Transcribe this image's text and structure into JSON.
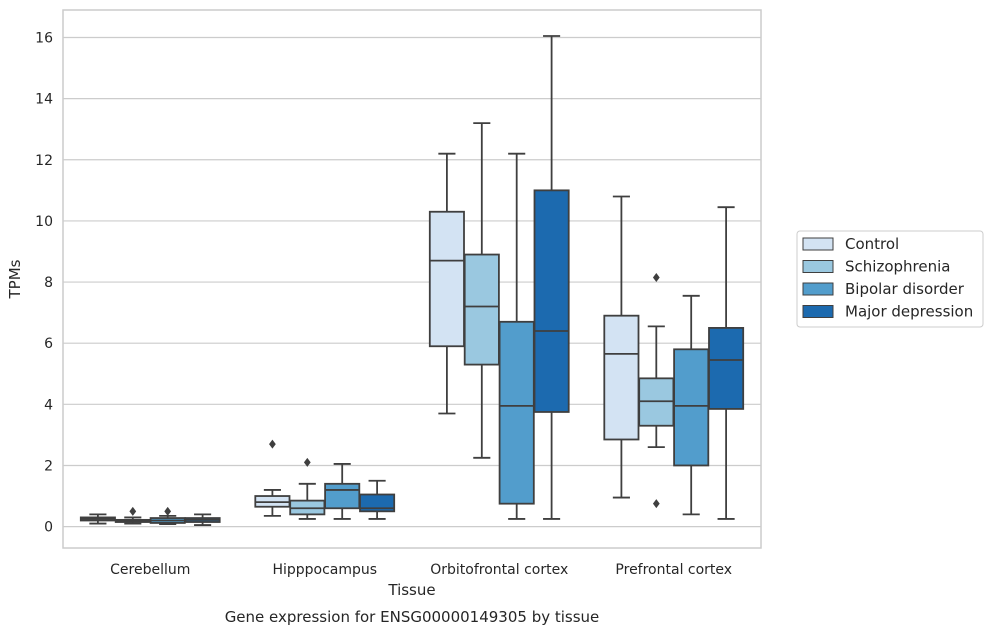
{
  "chart_data": {
    "type": "box",
    "caption": "Gene expression for ENSG00000149305 by tissue",
    "xlabel": "Tissue",
    "ylabel": "TPMs",
    "ylim": [
      -0.7,
      16.9
    ],
    "yticks": [
      0,
      2,
      4,
      6,
      8,
      10,
      12,
      14,
      16
    ],
    "grid": "horizontal",
    "legend_position": "right",
    "categories": [
      "Cerebellum",
      "Hipppocampus",
      "Orbitofrontal cortex",
      "Prefrontal cortex"
    ],
    "series": [
      {
        "name": "Control",
        "color": "#d3e3f3",
        "boxes": [
          {
            "whislo": 0.1,
            "q1": 0.2,
            "med": 0.25,
            "q3": 0.3,
            "whishi": 0.4,
            "fliers": []
          },
          {
            "whislo": 0.35,
            "q1": 0.65,
            "med": 0.8,
            "q3": 1.0,
            "whishi": 1.2,
            "fliers": [
              2.7
            ]
          },
          {
            "whislo": 3.7,
            "q1": 5.9,
            "med": 8.7,
            "q3": 10.3,
            "whishi": 12.2,
            "fliers": []
          },
          {
            "whislo": 0.95,
            "q1": 2.85,
            "med": 5.65,
            "q3": 6.9,
            "whishi": 10.8,
            "fliers": []
          }
        ]
      },
      {
        "name": "Schizophrenia",
        "color": "#9ac8e0",
        "boxes": [
          {
            "whislo": 0.1,
            "q1": 0.15,
            "med": 0.18,
            "q3": 0.22,
            "whishi": 0.3,
            "fliers": [
              0.5
            ]
          },
          {
            "whislo": 0.25,
            "q1": 0.4,
            "med": 0.6,
            "q3": 0.85,
            "whishi": 1.4,
            "fliers": [
              2.1
            ]
          },
          {
            "whislo": 2.25,
            "q1": 5.3,
            "med": 7.2,
            "q3": 8.9,
            "whishi": 13.2,
            "fliers": []
          },
          {
            "whislo": 2.6,
            "q1": 3.3,
            "med": 4.1,
            "q3": 4.85,
            "whishi": 6.55,
            "fliers": [
              8.15,
              0.75
            ]
          }
        ]
      },
      {
        "name": "Bipolar disorder",
        "color": "#529dcc",
        "boxes": [
          {
            "whislo": 0.08,
            "q1": 0.12,
            "med": 0.2,
            "q3": 0.28,
            "whishi": 0.35,
            "fliers": [
              0.5
            ]
          },
          {
            "whislo": 0.25,
            "q1": 0.6,
            "med": 1.2,
            "q3": 1.4,
            "whishi": 2.05,
            "fliers": []
          },
          {
            "whislo": 0.25,
            "q1": 0.75,
            "med": 3.95,
            "q3": 6.7,
            "whishi": 12.2,
            "fliers": []
          },
          {
            "whislo": 0.4,
            "q1": 2.0,
            "med": 3.95,
            "q3": 5.8,
            "whishi": 7.55,
            "fliers": []
          }
        ]
      },
      {
        "name": "Major depression",
        "color": "#1c6aaf",
        "boxes": [
          {
            "whislo": 0.05,
            "q1": 0.15,
            "med": 0.22,
            "q3": 0.28,
            "whishi": 0.4,
            "fliers": []
          },
          {
            "whislo": 0.25,
            "q1": 0.5,
            "med": 0.6,
            "q3": 1.05,
            "whishi": 1.5,
            "fliers": []
          },
          {
            "whislo": 0.25,
            "q1": 3.75,
            "med": 6.4,
            "q3": 11.0,
            "whishi": 16.05,
            "fliers": []
          },
          {
            "whislo": 0.25,
            "q1": 3.85,
            "med": 5.45,
            "q3": 6.5,
            "whishi": 10.45,
            "fliers": []
          }
        ]
      }
    ]
  }
}
